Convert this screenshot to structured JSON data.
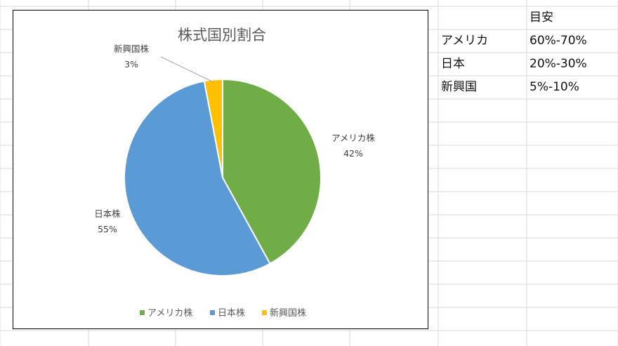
{
  "chart_data": {
    "type": "pie",
    "title": "株式国別割合",
    "categories": [
      "アメリカ株",
      "日本株",
      "新興国株"
    ],
    "values": [
      42,
      55,
      3
    ],
    "value_labels": [
      "42%",
      "55%",
      "3%"
    ],
    "colors": [
      "#70AD47",
      "#5B9BD5",
      "#FFC000"
    ],
    "legend": "bottom"
  },
  "sheet": {
    "header": "目安",
    "rows": [
      {
        "label": "アメリカ",
        "value": "60%-70%"
      },
      {
        "label": "日本",
        "value": "20%-30%"
      },
      {
        "label": "新興国",
        "value": "5%-10%"
      }
    ]
  }
}
